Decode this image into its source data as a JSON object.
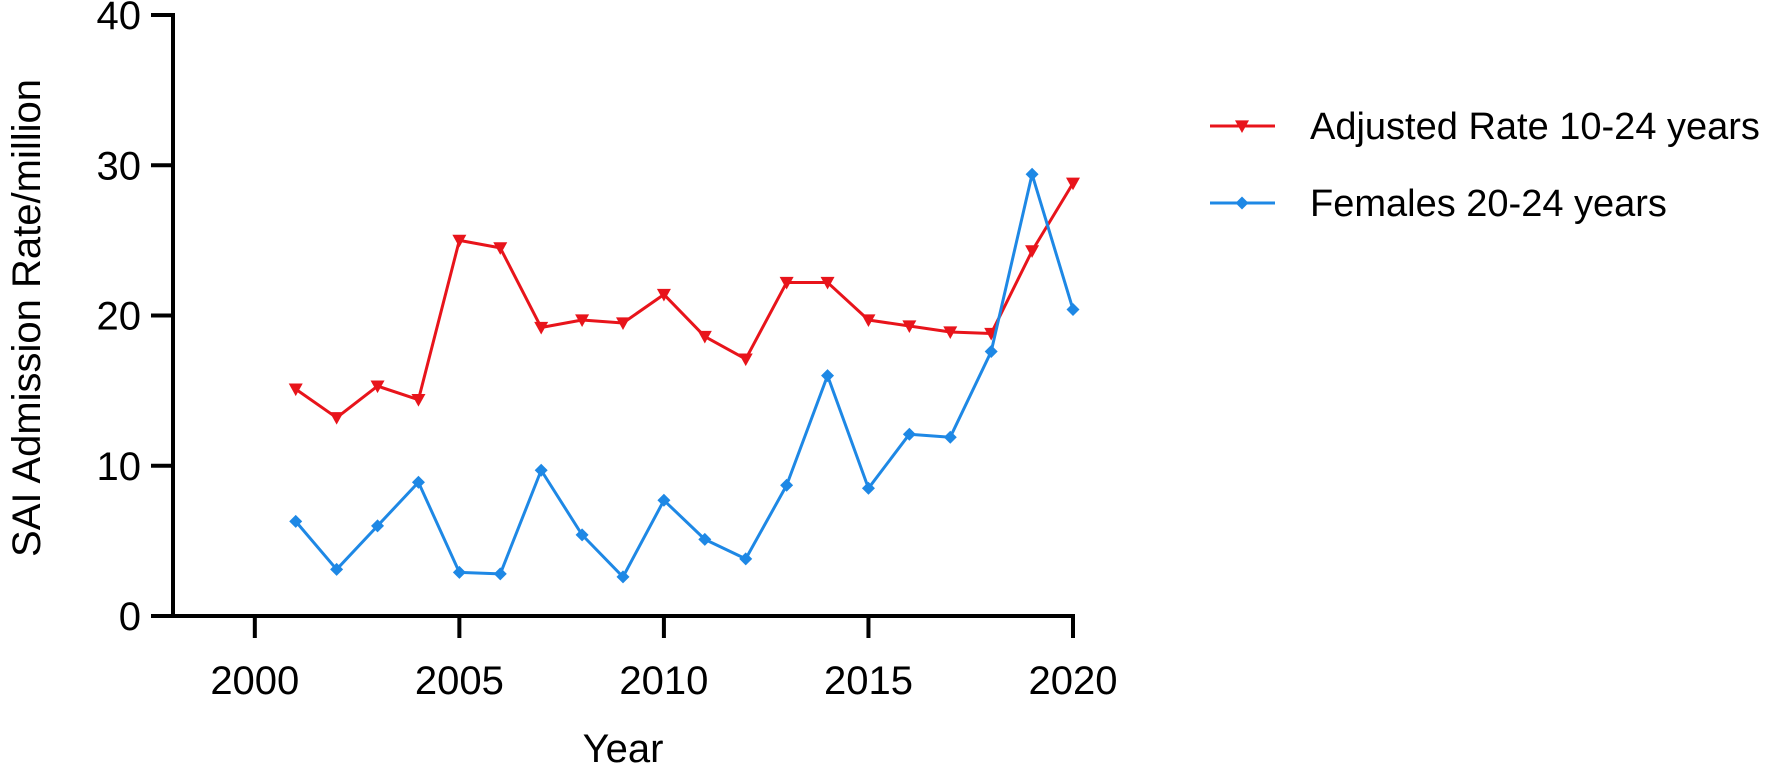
{
  "chart_data": {
    "type": "line",
    "title": "",
    "xlabel": "Year",
    "ylabel": "SAI Admission Rate/million",
    "xlim": [
      1998,
      2020
    ],
    "ylim": [
      0,
      40
    ],
    "xticks": [
      2000,
      2005,
      2010,
      2015,
      2020
    ],
    "yticks": [
      0,
      10,
      20,
      30,
      40
    ],
    "grid": false,
    "legend_position": "right",
    "series": [
      {
        "name": "Adjusted Rate 10-24 years",
        "color": "#e8141b",
        "marker": "triangle-down",
        "x": [
          2001,
          2002,
          2003,
          2004,
          2005,
          2006,
          2007,
          2008,
          2009,
          2010,
          2011,
          2012,
          2013,
          2014,
          2015,
          2016,
          2017,
          2018,
          2019,
          2020
        ],
        "y": [
          15.1,
          13.2,
          15.3,
          14.4,
          25.0,
          24.5,
          19.2,
          19.7,
          19.5,
          21.4,
          18.6,
          17.1,
          22.2,
          22.2,
          19.7,
          19.3,
          18.9,
          18.8,
          24.3,
          28.8
        ]
      },
      {
        "name": "Females 20-24 years",
        "color": "#1e88e5",
        "marker": "diamond",
        "x": [
          2001,
          2002,
          2003,
          2004,
          2005,
          2006,
          2007,
          2008,
          2009,
          2010,
          2011,
          2012,
          2013,
          2014,
          2015,
          2016,
          2017,
          2018,
          2019,
          2020
        ],
        "y": [
          6.3,
          3.1,
          6.0,
          8.9,
          2.9,
          2.8,
          9.7,
          5.4,
          2.6,
          7.7,
          5.1,
          3.8,
          8.7,
          16.0,
          8.5,
          12.1,
          11.9,
          17.6,
          29.4,
          20.4
        ]
      }
    ]
  }
}
